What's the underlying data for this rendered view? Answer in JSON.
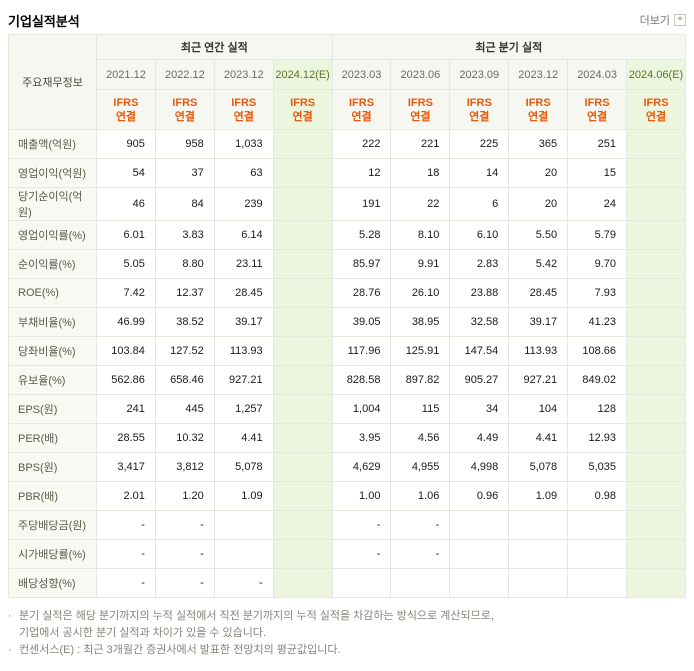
{
  "page": {
    "title": "기업실적분석",
    "more_label": "더보기",
    "more_icon_glyph": "+"
  },
  "table": {
    "corner_header": "주요재무정보",
    "annual_group_label": "최근 연간 실적",
    "quarterly_group_label": "최근 분기 실적",
    "annual_periods": [
      "2021.12",
      "2022.12",
      "2023.12",
      "2024.12(E)"
    ],
    "quarterly_periods": [
      "2023.03",
      "2023.06",
      "2023.09",
      "2023.12",
      "2024.03",
      "2024.06(E)"
    ],
    "ifrs_line1": "IFRS",
    "ifrs_line2": "연결",
    "rows": [
      {
        "label": "매출액(억원)",
        "annual": [
          "905",
          "958",
          "1,033",
          ""
        ],
        "quarterly": [
          "222",
          "221",
          "225",
          "365",
          "251",
          ""
        ]
      },
      {
        "label": "영업이익(억원)",
        "annual": [
          "54",
          "37",
          "63",
          ""
        ],
        "quarterly": [
          "12",
          "18",
          "14",
          "20",
          "15",
          ""
        ]
      },
      {
        "label": "당기순이익(억원)",
        "annual": [
          "46",
          "84",
          "239",
          ""
        ],
        "quarterly": [
          "191",
          "22",
          "6",
          "20",
          "24",
          ""
        ]
      },
      {
        "label": "영업이익률(%)",
        "annual": [
          "6.01",
          "3.83",
          "6.14",
          ""
        ],
        "quarterly": [
          "5.28",
          "8.10",
          "6.10",
          "5.50",
          "5.79",
          ""
        ]
      },
      {
        "label": "순이익률(%)",
        "annual": [
          "5.05",
          "8.80",
          "23.11",
          ""
        ],
        "quarterly": [
          "85.97",
          "9.91",
          "2.83",
          "5.42",
          "9.70",
          ""
        ]
      },
      {
        "label": "ROE(%)",
        "annual": [
          "7.42",
          "12.37",
          "28.45",
          ""
        ],
        "quarterly": [
          "28.76",
          "26.10",
          "23.88",
          "28.45",
          "7.93",
          ""
        ]
      },
      {
        "label": "부채비율(%)",
        "annual": [
          "46.99",
          "38.52",
          "39.17",
          ""
        ],
        "quarterly": [
          "39.05",
          "38.95",
          "32.58",
          "39.17",
          "41.23",
          ""
        ]
      },
      {
        "label": "당좌비율(%)",
        "annual": [
          "103.84",
          "127.52",
          "113.93",
          ""
        ],
        "quarterly": [
          "117.96",
          "125.91",
          "147.54",
          "113.93",
          "108.66",
          ""
        ]
      },
      {
        "label": "유보율(%)",
        "annual": [
          "562.86",
          "658.46",
          "927.21",
          ""
        ],
        "quarterly": [
          "828.58",
          "897.82",
          "905.27",
          "927.21",
          "849.02",
          ""
        ]
      },
      {
        "label": "EPS(원)",
        "annual": [
          "241",
          "445",
          "1,257",
          ""
        ],
        "quarterly": [
          "1,004",
          "115",
          "34",
          "104",
          "128",
          ""
        ]
      },
      {
        "label": "PER(배)",
        "annual": [
          "28.55",
          "10.32",
          "4.41",
          ""
        ],
        "quarterly": [
          "3.95",
          "4.56",
          "4.49",
          "4.41",
          "12.93",
          ""
        ]
      },
      {
        "label": "BPS(원)",
        "annual": [
          "3,417",
          "3,812",
          "5,078",
          ""
        ],
        "quarterly": [
          "4,629",
          "4,955",
          "4,998",
          "5,078",
          "5,035",
          ""
        ]
      },
      {
        "label": "PBR(배)",
        "annual": [
          "2.01",
          "1.20",
          "1.09",
          ""
        ],
        "quarterly": [
          "1.00",
          "1.06",
          "0.96",
          "1.09",
          "0.98",
          ""
        ]
      },
      {
        "label": "주당배당금(원)",
        "annual": [
          "-",
          "-",
          "",
          ""
        ],
        "quarterly": [
          "-",
          "-",
          "",
          "",
          "",
          ""
        ]
      },
      {
        "label": "시가배당률(%)",
        "annual": [
          "-",
          "-",
          "",
          ""
        ],
        "quarterly": [
          "-",
          "-",
          "",
          "",
          "",
          ""
        ]
      },
      {
        "label": "배당성향(%)",
        "annual": [
          "-",
          "-",
          "-",
          ""
        ],
        "quarterly": [
          "",
          "",
          "",
          "",
          "",
          ""
        ]
      }
    ]
  },
  "footnotes": [
    {
      "bullet": "·",
      "text": "분기 실적은 해당 분기까지의 누적 실적에서 직전 분기까지의 누적 실적을 차감하는 방식으로 계산되므로,"
    },
    {
      "bullet": "",
      "text": "기업에서 공시한 분기 실적과 차이가 있을 수 있습니다."
    },
    {
      "bullet": "·",
      "text": "컨센서스(E) : 최근 3개월간 증권사에서 발표한 전망치의 평균값입니다."
    }
  ],
  "colors": {
    "accent_orange": "#e8590c",
    "estimate_bg": "#ecf6de",
    "header_bg": "#f6f7f1"
  }
}
